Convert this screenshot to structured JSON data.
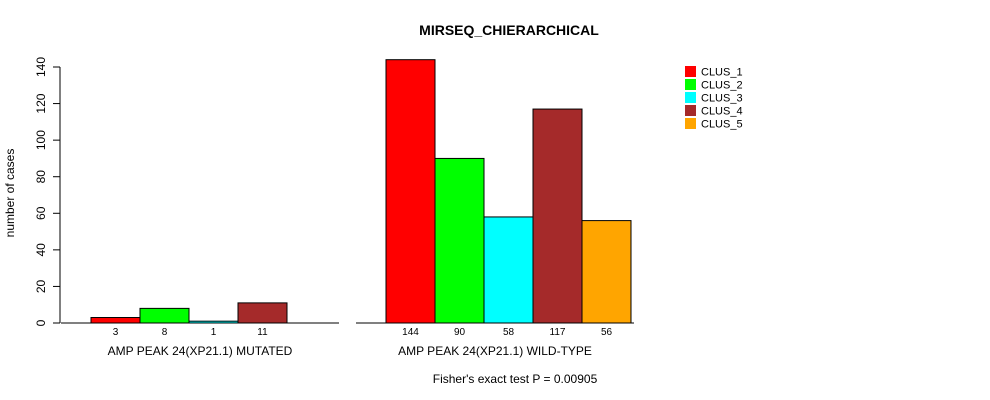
{
  "chart_data": {
    "type": "bar",
    "title": "MIRSEQ_CHIERARCHICAL",
    "ylabel": "number of cases",
    "ylim": [
      0,
      140
    ],
    "yticks": [
      0,
      20,
      40,
      60,
      80,
      100,
      120,
      140
    ],
    "footer": "Fisher's exact test P = 0.00905",
    "groups": [
      {
        "label": "AMP PEAK 24(XP21.1) MUTATED",
        "values": [
          3,
          8,
          1,
          11,
          0
        ],
        "value_labels": [
          "3",
          "8",
          "1",
          "11",
          ""
        ]
      },
      {
        "label": "AMP PEAK 24(XP21.1) WILD-TYPE",
        "values": [
          144,
          90,
          58,
          117,
          56
        ],
        "value_labels": [
          "144",
          "90",
          "58",
          "117",
          "56"
        ]
      }
    ],
    "series": [
      {
        "name": "CLUS_1",
        "color": "#ff0000"
      },
      {
        "name": "CLUS_2",
        "color": "#00ff00"
      },
      {
        "name": "CLUS_3",
        "color": "#00ffff"
      },
      {
        "name": "CLUS_4",
        "color": "#a52a2a"
      },
      {
        "name": "CLUS_5",
        "color": "#ffa500"
      }
    ],
    "legend_position": "top-right"
  }
}
